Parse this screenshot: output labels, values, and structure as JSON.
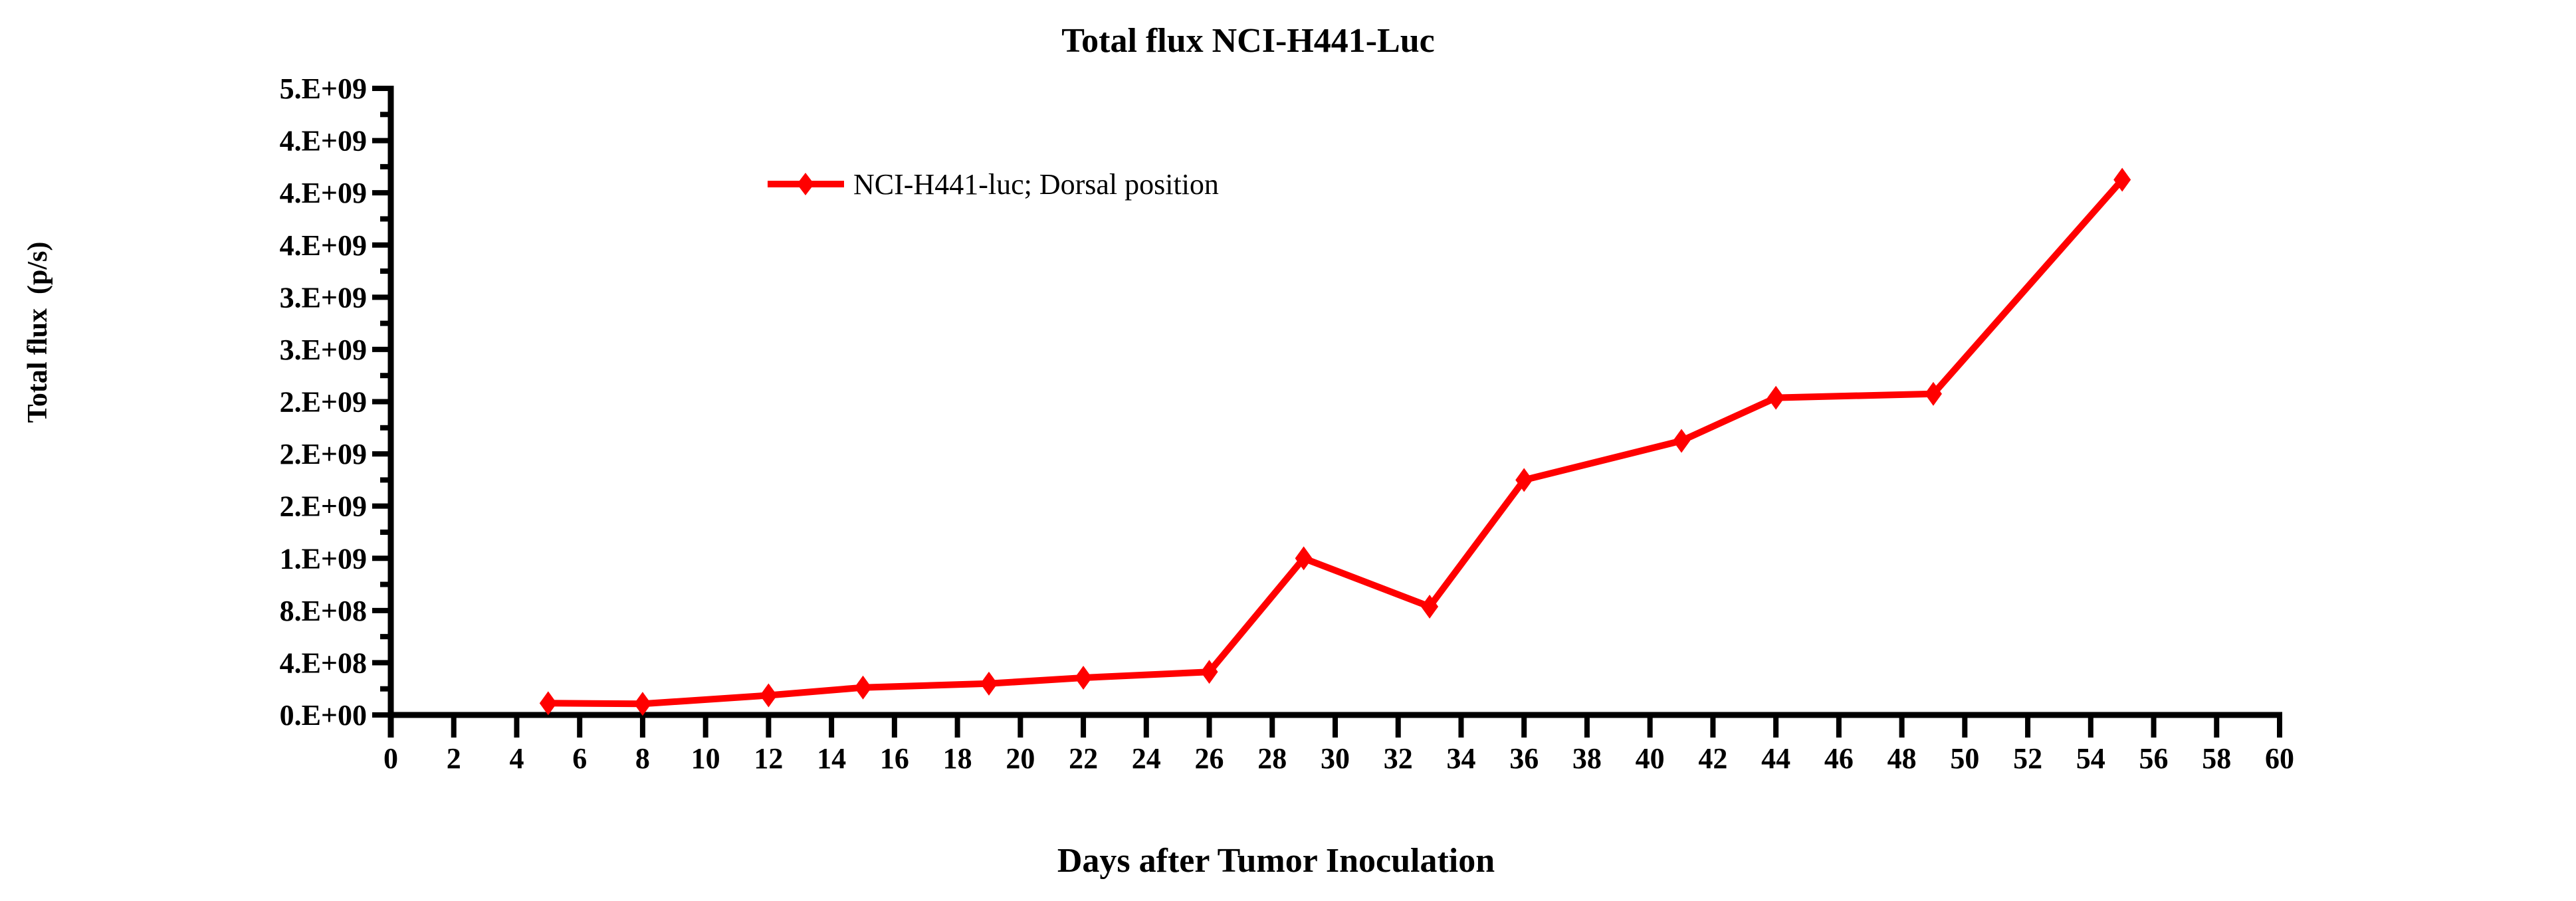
{
  "title": "Total flux NCI-H441-Luc",
  "axes": {
    "x_label": "Days after Tumor Inoculation",
    "y_label": "Total flux  (p/s)"
  },
  "legend": {
    "label": "NCI-H441-luc; Dorsal position",
    "marker": "diamond",
    "color": "#FF0000"
  },
  "colors": {
    "series": "#FF0000",
    "axis": "#000000",
    "text": "#000000",
    "background": "#FFFFFF"
  },
  "chart_data": {
    "type": "line",
    "title": "Total flux NCI-H441-Luc",
    "xlabel": "Days after Tumor Inoculation",
    "ylabel": "Total flux (p/s)",
    "grid": false,
    "legend_position": "inside-upper-left",
    "xlim": [
      0,
      60
    ],
    "ylim": [
      0,
      4800000000
    ],
    "series": [
      {
        "name": "NCI-H441-luc; Dorsal position",
        "color": "#FF0000",
        "marker": "diamond",
        "x": [
          5,
          8,
          12,
          15,
          19,
          22,
          26,
          29,
          33,
          36,
          41,
          44,
          49,
          55
        ],
        "y": [
          90000000,
          85000000,
          150000000,
          210000000,
          240000000,
          285000000,
          330000000,
          1200000000,
          830000000,
          1800000000,
          2100000000,
          2430000000,
          2460000000,
          4100000000
        ]
      }
    ],
    "x_ticks": {
      "step": 2,
      "labels": [
        "0",
        "2",
        "4",
        "6",
        "8",
        "10",
        "12",
        "14",
        "16",
        "18",
        "20",
        "22",
        "24",
        "26",
        "28",
        "30",
        "32",
        "34",
        "36",
        "38",
        "40",
        "42",
        "44",
        "46",
        "48",
        "50",
        "52",
        "54",
        "56",
        "58",
        "60"
      ]
    },
    "y_ticks": {
      "major_step": 400000000,
      "minor_step": 200000000,
      "format": "0.E+00",
      "major_labels_bottom_to_top": [
        "0.E+00",
        "4.E+08",
        "8.E+08",
        "1.E+09",
        "2.E+09",
        "2.E+09",
        "2.E+09",
        "3.E+09",
        "3.E+09",
        "4.E+09",
        "4.E+09",
        "4.E+09",
        "5.E+09"
      ]
    }
  }
}
